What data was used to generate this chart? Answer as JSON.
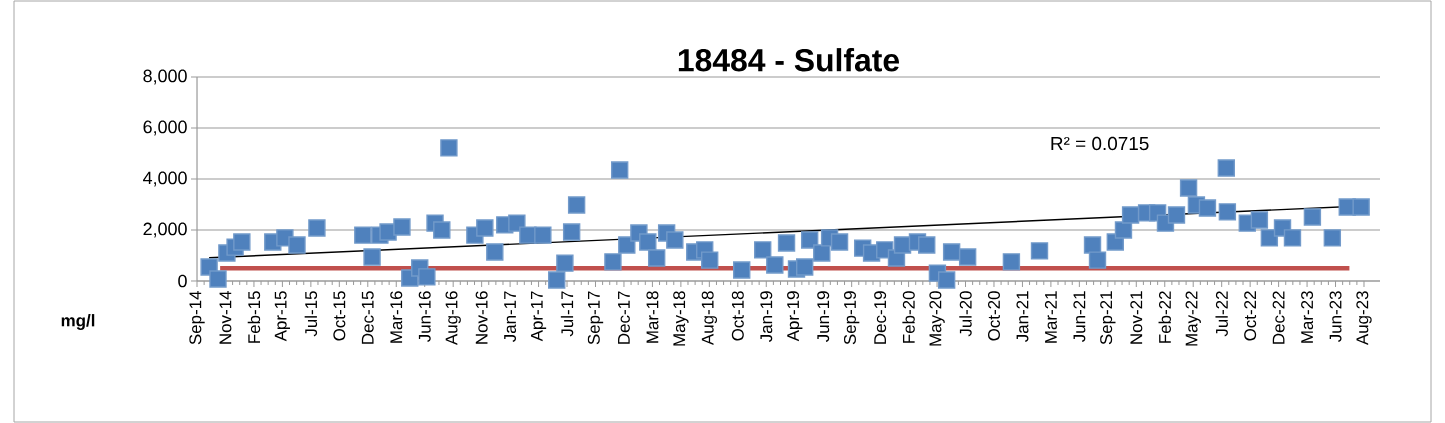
{
  "chart_data": {
    "type": "scatter",
    "title": "18484 - Sulfate",
    "ylabel": "mg/l",
    "annotations": [
      "R² = 0.0715"
    ],
    "xlim": [
      "2014-09-01",
      "2023-10-09"
    ],
    "ylim": [
      0,
      8000
    ],
    "yticks": [
      0,
      {
        "value": 2000,
        "label": "2,000"
      },
      {
        "value": 4000,
        "label": "4,000"
      },
      {
        "value": 6000,
        "label": "6,000"
      },
      {
        "value": 8000,
        "label": "8,000"
      }
    ],
    "xticks": [
      {
        "value": "2014-09-01",
        "label": "Sep-14"
      },
      {
        "value": "2014-11-20",
        "label": "Nov-14"
      },
      {
        "value": "2015-02-08",
        "label": "Feb-15"
      },
      {
        "value": "2015-04-29",
        "label": "Apr-15"
      },
      {
        "value": "2015-07-18",
        "label": "Jul-15"
      },
      {
        "value": "2015-10-06",
        "label": "Oct-15"
      },
      {
        "value": "2015-12-25",
        "label": "Dec-15"
      },
      {
        "value": "2016-03-14",
        "label": "Mar-16"
      },
      {
        "value": "2016-06-02",
        "label": "Jun-16"
      },
      {
        "value": "2016-08-21",
        "label": "Aug-16"
      },
      {
        "value": "2016-11-09",
        "label": "Nov-16"
      },
      {
        "value": "2017-01-28",
        "label": "Jan-17"
      },
      {
        "value": "2017-04-18",
        "label": "Apr-17"
      },
      {
        "value": "2017-07-07",
        "label": "Jul-17"
      },
      {
        "value": "2017-09-25",
        "label": "Sep-17"
      },
      {
        "value": "2017-12-14",
        "label": "Dec-17"
      },
      {
        "value": "2018-03-04",
        "label": "Mar-18"
      },
      {
        "value": "2018-05-23",
        "label": "May-18"
      },
      {
        "value": "2018-08-11",
        "label": "Aug-18"
      },
      {
        "value": "2018-10-30",
        "label": "Oct-18"
      },
      {
        "value": "2019-01-18",
        "label": "Jan-19"
      },
      {
        "value": "2019-04-08",
        "label": "Apr-19"
      },
      {
        "value": "2019-06-27",
        "label": "Jun-19"
      },
      {
        "value": "2019-09-15",
        "label": "Sep-19"
      },
      {
        "value": "2019-12-04",
        "label": "Dec-19"
      },
      {
        "value": "2020-02-22",
        "label": "Feb-20"
      },
      {
        "value": "2020-05-12",
        "label": "May-20"
      },
      {
        "value": "2020-07-31",
        "label": "Jul-20"
      },
      {
        "value": "2020-10-19",
        "label": "Oct-20"
      },
      {
        "value": "2021-01-07",
        "label": "Jan-21"
      },
      {
        "value": "2021-03-28",
        "label": "Mar-21"
      },
      {
        "value": "2021-06-16",
        "label": "Jun-21"
      },
      {
        "value": "2021-09-04",
        "label": "Sep-21"
      },
      {
        "value": "2021-11-23",
        "label": "Nov-21"
      },
      {
        "value": "2022-02-11",
        "label": "Feb-22"
      },
      {
        "value": "2022-05-02",
        "label": "May-22"
      },
      {
        "value": "2022-07-21",
        "label": "Jul-22"
      },
      {
        "value": "2022-10-09",
        "label": "Oct-22"
      },
      {
        "value": "2022-12-28",
        "label": "Dec-22"
      },
      {
        "value": "2023-03-18",
        "label": "Mar-23"
      },
      {
        "value": "2023-06-06",
        "label": "Jun-23"
      },
      {
        "value": "2023-08-25",
        "label": "Aug-23"
      }
    ],
    "grid": "y",
    "marker": "square",
    "series": [
      {
        "type": "line",
        "color": "#c0504d",
        "marker": "none",
        "x": [
          "2014-11-05",
          "2023-07-15"
        ],
        "values": [
          500,
          500
        ]
      },
      {
        "type": "scatter",
        "color": "#4f81bd",
        "x": [
          "2014-10-05",
          "2014-10-30",
          "2014-11-24",
          "2014-12-17",
          "2015-01-05",
          "2015-04-02",
          "2015-05-06",
          "2015-06-09",
          "2015-08-04",
          "2015-12-11",
          "2016-01-06",
          "2016-01-28",
          "2016-02-20",
          "2016-03-30",
          "2016-04-21",
          "2016-05-19",
          "2016-06-08",
          "2016-07-01",
          "2016-07-20",
          "2016-08-09",
          "2016-10-21",
          "2016-11-18",
          "2016-12-16",
          "2017-01-13",
          "2017-02-16",
          "2017-03-19",
          "2017-04-30",
          "2017-06-08",
          "2017-07-01",
          "2017-07-20",
          "2017-08-03",
          "2017-11-13",
          "2017-12-02",
          "2017-12-22",
          "2018-01-25",
          "2018-02-19",
          "2018-03-16",
          "2018-04-13",
          "2018-05-06",
          "2018-07-01",
          "2018-07-29",
          "2018-08-12",
          "2018-11-10",
          "2019-01-08",
          "2019-02-11",
          "2019-03-16",
          "2019-04-13",
          "2019-05-06",
          "2019-05-20",
          "2019-06-23",
          "2019-07-15",
          "2019-08-12",
          "2019-10-16",
          "2019-11-10",
          "2019-12-17",
          "2020-01-19",
          "2020-02-05",
          "2020-03-18",
          "2020-04-13",
          "2020-05-13",
          "2020-06-08",
          "2020-06-22",
          "2020-08-06",
          "2020-12-07",
          "2021-02-24",
          "2021-07-23",
          "2021-08-06",
          "2021-09-25",
          "2021-10-18",
          "2021-11-07",
          "2021-12-22",
          "2022-01-22",
          "2022-02-13",
          "2022-03-16",
          "2022-04-19",
          "2022-05-11",
          "2022-06-11",
          "2022-08-03",
          "2022-08-06",
          "2022-10-01",
          "2022-11-04",
          "2022-12-02",
          "2023-01-08",
          "2023-02-05",
          "2023-04-02",
          "2023-05-28",
          "2023-07-09",
          "2023-08-17"
        ],
        "values": [
          550,
          80,
          1100,
          1330,
          1530,
          1530,
          1690,
          1410,
          2080,
          1800,
          940,
          1800,
          1920,
          2120,
          120,
          510,
          160,
          2270,
          2000,
          5220,
          1800,
          2080,
          1140,
          2200,
          2270,
          1800,
          1800,
          40,
          700,
          1920,
          2980,
          750,
          4350,
          1410,
          1880,
          1530,
          900,
          1880,
          1610,
          1140,
          1220,
          820,
          430,
          1220,
          630,
          1490,
          470,
          550,
          1610,
          1100,
          1690,
          1530,
          1290,
          1100,
          1220,
          900,
          1410,
          1530,
          1410,
          310,
          40,
          1140,
          940,
          750,
          1180,
          1410,
          820,
          1530,
          2000,
          2590,
          2670,
          2670,
          2270,
          2590,
          3650,
          2980,
          2860,
          4430,
          2710,
          2270,
          2390,
          1690,
          2080,
          1690,
          2510,
          1690,
          2900,
          2900
        ]
      },
      {
        "type": "line",
        "color": "#000000",
        "marker": "none",
        "x": [
          "2014-10-05",
          "2023-08-17"
        ],
        "values": [
          910,
          2940
        ]
      }
    ]
  }
}
